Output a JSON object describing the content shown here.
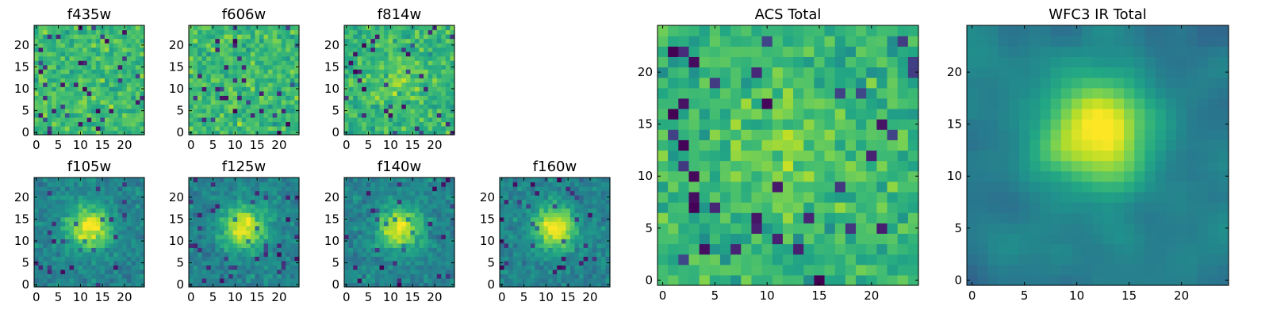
{
  "chart_data": [
    {
      "type": "heatmap",
      "title": "f435w",
      "xticks": [
        "0",
        "5",
        "10",
        "15",
        "20"
      ],
      "yticks": [
        "0",
        "5",
        "10",
        "15",
        "20"
      ],
      "xlim": [
        -0.5,
        24.5
      ],
      "ylim": [
        -0.5,
        24.5
      ],
      "colormap": "viridis",
      "grid_size": [
        25,
        25
      ],
      "pattern": "noise",
      "seed": 11
    },
    {
      "type": "heatmap",
      "title": "f606w",
      "xticks": [
        "0",
        "5",
        "10",
        "15",
        "20"
      ],
      "yticks": [
        "0",
        "5",
        "10",
        "15",
        "20"
      ],
      "xlim": [
        -0.5,
        24.5
      ],
      "ylim": [
        -0.5,
        24.5
      ],
      "colormap": "viridis",
      "grid_size": [
        25,
        25
      ],
      "pattern": "noise",
      "seed": 23
    },
    {
      "type": "heatmap",
      "title": "f814w",
      "xticks": [
        "0",
        "5",
        "10",
        "15",
        "20"
      ],
      "yticks": [
        "0",
        "5",
        "10",
        "15",
        "20"
      ],
      "xlim": [
        -0.5,
        24.5
      ],
      "ylim": [
        -0.5,
        24.5
      ],
      "colormap": "viridis",
      "grid_size": [
        25,
        25
      ],
      "pattern": "noise-faint-center",
      "seed": 37
    },
    {
      "type": "heatmap",
      "title": "f105w",
      "xticks": [
        "0",
        "5",
        "10",
        "15",
        "20"
      ],
      "yticks": [
        "0",
        "5",
        "10",
        "15",
        "20"
      ],
      "xlim": [
        -0.5,
        24.5
      ],
      "ylim": [
        -0.5,
        24.5
      ],
      "colormap": "viridis",
      "grid_size": [
        25,
        25
      ],
      "pattern": "source",
      "seed": 41
    },
    {
      "type": "heatmap",
      "title": "f125w",
      "xticks": [
        "0",
        "5",
        "10",
        "15",
        "20"
      ],
      "yticks": [
        "0",
        "5",
        "10",
        "15",
        "20"
      ],
      "xlim": [
        -0.5,
        24.5
      ],
      "ylim": [
        -0.5,
        24.5
      ],
      "colormap": "viridis",
      "grid_size": [
        25,
        25
      ],
      "pattern": "source",
      "seed": 53
    },
    {
      "type": "heatmap",
      "title": "f140w",
      "xticks": [
        "0",
        "5",
        "10",
        "15",
        "20"
      ],
      "yticks": [
        "0",
        "5",
        "10",
        "15",
        "20"
      ],
      "xlim": [
        -0.5,
        24.5
      ],
      "ylim": [
        -0.5,
        24.5
      ],
      "colormap": "viridis",
      "grid_size": [
        25,
        25
      ],
      "pattern": "source",
      "seed": 67
    },
    {
      "type": "heatmap",
      "title": "f160w",
      "xticks": [
        "0",
        "5",
        "10",
        "15",
        "20"
      ],
      "yticks": [
        "0",
        "5",
        "10",
        "15",
        "20"
      ],
      "xlim": [
        -0.5,
        24.5
      ],
      "ylim": [
        -0.5,
        24.5
      ],
      "colormap": "viridis",
      "grid_size": [
        25,
        25
      ],
      "pattern": "source",
      "seed": 79
    },
    {
      "type": "heatmap",
      "title": "ACS Total",
      "xticks": [
        "0",
        "5",
        "10",
        "15",
        "20"
      ],
      "yticks": [
        "0",
        "5",
        "10",
        "15",
        "20"
      ],
      "xlim": [
        -0.5,
        24.5
      ],
      "ylim": [
        -0.5,
        24.5
      ],
      "colormap": "viridis",
      "grid_size": [
        25,
        25
      ],
      "pattern": "noise-faint-center",
      "seed": 83
    },
    {
      "type": "heatmap",
      "title": "WFC3 IR Total",
      "xticks": [
        "0",
        "5",
        "10",
        "15",
        "20"
      ],
      "yticks": [
        "0",
        "5",
        "10",
        "15",
        "20"
      ],
      "xlim": [
        -0.5,
        24.5
      ],
      "ylim": [
        -0.5,
        24.5
      ],
      "colormap": "viridis",
      "grid_size": [
        25,
        25
      ],
      "pattern": "source-smooth",
      "seed": 97
    }
  ]
}
